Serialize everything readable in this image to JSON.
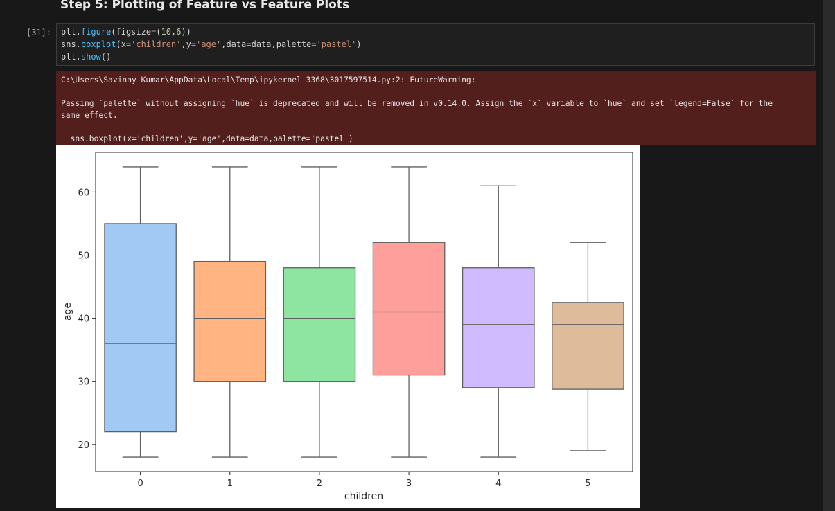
{
  "notebook": {
    "heading": "Step 5: Plotting of Feature vs Feature Plots",
    "cell": {
      "prompt": "[31]:",
      "code_lines": [
        "plt.figure(figsize=(10,6))",
        "sns.boxplot(x='children',y='age',data=data,palette='pastel')",
        "plt.show()"
      ]
    },
    "warning": {
      "path_line": "C:\\Users\\Savinay Kumar\\AppData\\Local\\Temp\\ipykernel_3368\\3017597514.py:2: FutureWarning:",
      "message_line1": "Passing `palette` without assigning `hue` is deprecated and will be removed in v0.14.0. Assign the `x` variable to `hue` and set `legend=False` for the",
      "message_line2": "same effect.",
      "source_line": "  sns.boxplot(x='children',y='age',data=data,palette='pastel')"
    }
  },
  "colors": {
    "background": "#181818",
    "warning_bg": "#531f1d",
    "box_edge": "#5f5f5f"
  },
  "chart_data": {
    "type": "box",
    "title": "",
    "xlabel": "children",
    "ylabel": "age",
    "categories": [
      "0",
      "1",
      "2",
      "3",
      "4",
      "5"
    ],
    "ylim": [
      15.7,
      66.3
    ],
    "yticks": [
      20,
      30,
      40,
      50,
      60
    ],
    "grid": false,
    "boxes": [
      {
        "category": "0",
        "whislo": 18,
        "q1": 22,
        "med": 36,
        "q3": 55,
        "whishi": 64,
        "color": "#a1c9f4"
      },
      {
        "category": "1",
        "whislo": 18,
        "q1": 30,
        "med": 40,
        "q3": 49,
        "whishi": 64,
        "color": "#ffb482"
      },
      {
        "category": "2",
        "whislo": 18,
        "q1": 30,
        "med": 40,
        "q3": 48,
        "whishi": 64,
        "color": "#8de5a1"
      },
      {
        "category": "3",
        "whislo": 18,
        "q1": 31,
        "med": 41,
        "q3": 52,
        "whishi": 64,
        "color": "#ff9f9b"
      },
      {
        "category": "4",
        "whislo": 18,
        "q1": 29,
        "med": 39,
        "q3": 48,
        "whishi": 61,
        "color": "#d0bbff"
      },
      {
        "category": "5",
        "whislo": 19,
        "q1": 28.75,
        "med": 39,
        "q3": 42.5,
        "whishi": 52,
        "color": "#debb9b"
      }
    ]
  }
}
